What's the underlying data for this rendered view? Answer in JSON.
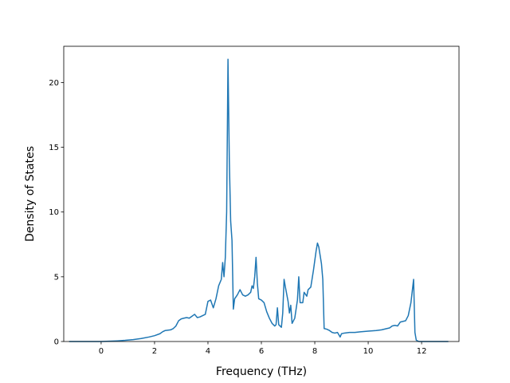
{
  "chart_data": {
    "type": "line",
    "title": "",
    "xlabel": "Frequency (THz)",
    "ylabel": "Density of States",
    "xlim": [
      -1.4,
      13.4
    ],
    "ylim": [
      0,
      22.8
    ],
    "x_ticks": [
      0,
      2,
      4,
      6,
      8,
      10,
      12
    ],
    "y_ticks": [
      0,
      5,
      10,
      15,
      20
    ],
    "x_tick_labels": [
      "0",
      "2",
      "4",
      "6",
      "8",
      "10",
      "12"
    ],
    "y_tick_labels": [
      "0",
      "5",
      "10",
      "15",
      "20"
    ],
    "grid": false,
    "legend": "none",
    "series": [
      {
        "color": "#1f77b4",
        "points": [
          [
            -1.2,
            0
          ],
          [
            -1.0,
            0
          ],
          [
            -0.5,
            0
          ],
          [
            0,
            0
          ],
          [
            0.3,
            0.02
          ],
          [
            0.6,
            0.05
          ],
          [
            0.9,
            0.09
          ],
          [
            1.2,
            0.15
          ],
          [
            1.5,
            0.23
          ],
          [
            1.8,
            0.35
          ],
          [
            2.0,
            0.45
          ],
          [
            2.2,
            0.6
          ],
          [
            2.3,
            0.75
          ],
          [
            2.4,
            0.85
          ],
          [
            2.6,
            0.9
          ],
          [
            2.7,
            1.0
          ],
          [
            2.8,
            1.2
          ],
          [
            2.9,
            1.6
          ],
          [
            3.0,
            1.75
          ],
          [
            3.1,
            1.8
          ],
          [
            3.2,
            1.85
          ],
          [
            3.3,
            1.8
          ],
          [
            3.4,
            1.95
          ],
          [
            3.5,
            2.1
          ],
          [
            3.6,
            1.85
          ],
          [
            3.7,
            1.9
          ],
          [
            3.8,
            2.0
          ],
          [
            3.9,
            2.1
          ],
          [
            4.0,
            3.1
          ],
          [
            4.1,
            3.2
          ],
          [
            4.2,
            2.6
          ],
          [
            4.3,
            3.3
          ],
          [
            4.4,
            4.3
          ],
          [
            4.5,
            4.8
          ],
          [
            4.55,
            6.1
          ],
          [
            4.6,
            5.0
          ],
          [
            4.65,
            6.5
          ],
          [
            4.7,
            10.0
          ],
          [
            4.75,
            21.8
          ],
          [
            4.8,
            14.0
          ],
          [
            4.85,
            9.3
          ],
          [
            4.9,
            7.8
          ],
          [
            4.95,
            2.5
          ],
          [
            5.0,
            3.3
          ],
          [
            5.1,
            3.6
          ],
          [
            5.2,
            4.0
          ],
          [
            5.3,
            3.6
          ],
          [
            5.4,
            3.5
          ],
          [
            5.5,
            3.6
          ],
          [
            5.6,
            3.8
          ],
          [
            5.65,
            4.3
          ],
          [
            5.7,
            4.1
          ],
          [
            5.75,
            5.0
          ],
          [
            5.8,
            6.5
          ],
          [
            5.85,
            4.5
          ],
          [
            5.9,
            3.3
          ],
          [
            6.0,
            3.2
          ],
          [
            6.1,
            3.0
          ],
          [
            6.2,
            2.3
          ],
          [
            6.3,
            1.8
          ],
          [
            6.4,
            1.4
          ],
          [
            6.5,
            1.2
          ],
          [
            6.55,
            1.3
          ],
          [
            6.6,
            2.6
          ],
          [
            6.65,
            1.3
          ],
          [
            6.75,
            1.1
          ],
          [
            6.8,
            2.2
          ],
          [
            6.85,
            4.8
          ],
          [
            6.9,
            4.2
          ],
          [
            7.0,
            3.1
          ],
          [
            7.05,
            2.2
          ],
          [
            7.1,
            2.8
          ],
          [
            7.15,
            1.4
          ],
          [
            7.25,
            1.8
          ],
          [
            7.35,
            3.2
          ],
          [
            7.4,
            5.0
          ],
          [
            7.45,
            3.0
          ],
          [
            7.55,
            3.0
          ],
          [
            7.6,
            3.8
          ],
          [
            7.7,
            3.5
          ],
          [
            7.75,
            4.0
          ],
          [
            7.85,
            4.2
          ],
          [
            7.95,
            5.5
          ],
          [
            8.05,
            7.0
          ],
          [
            8.1,
            7.6
          ],
          [
            8.15,
            7.3
          ],
          [
            8.25,
            6.0
          ],
          [
            8.3,
            4.8
          ],
          [
            8.35,
            1.0
          ],
          [
            8.45,
            0.95
          ],
          [
            8.55,
            0.85
          ],
          [
            8.65,
            0.7
          ],
          [
            8.75,
            0.65
          ],
          [
            8.85,
            0.7
          ],
          [
            8.95,
            0.35
          ],
          [
            9.0,
            0.6
          ],
          [
            9.1,
            0.65
          ],
          [
            9.3,
            0.7
          ],
          [
            9.5,
            0.7
          ],
          [
            9.7,
            0.75
          ],
          [
            10.0,
            0.8
          ],
          [
            10.3,
            0.85
          ],
          [
            10.5,
            0.9
          ],
          [
            10.7,
            1.0
          ],
          [
            10.8,
            1.05
          ],
          [
            10.9,
            1.2
          ],
          [
            11.0,
            1.25
          ],
          [
            11.1,
            1.2
          ],
          [
            11.2,
            1.5
          ],
          [
            11.4,
            1.6
          ],
          [
            11.5,
            2.0
          ],
          [
            11.6,
            3.0
          ],
          [
            11.7,
            4.8
          ],
          [
            11.75,
            0.7
          ],
          [
            11.8,
            0.1
          ],
          [
            11.9,
            0
          ],
          [
            12.0,
            0
          ],
          [
            12.5,
            0
          ],
          [
            13.0,
            0
          ]
        ]
      }
    ]
  }
}
